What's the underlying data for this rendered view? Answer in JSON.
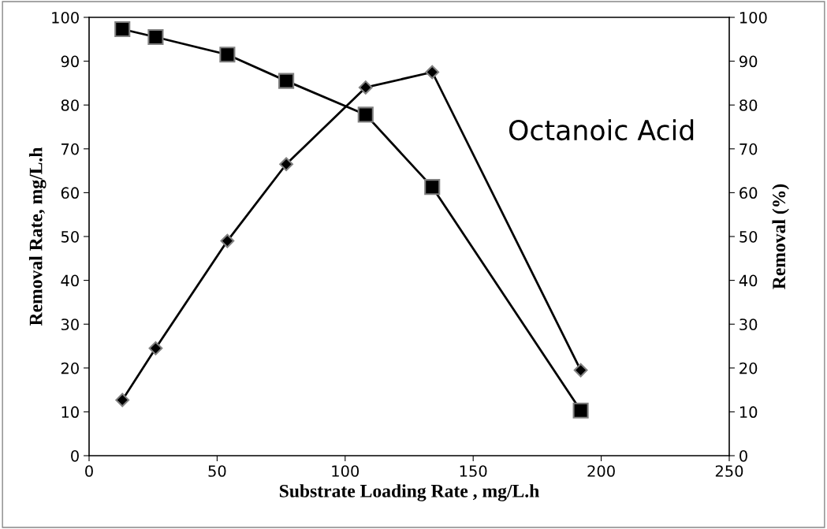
{
  "chart_data": {
    "type": "line",
    "xlabel": "Substrate Loading Rate , mg/L.h",
    "ylabel": "Removal Rate, mg/L.h",
    "y2label": "Removal (%)",
    "annotations": [
      "Octanoic Acid"
    ],
    "xlim": [
      0,
      250
    ],
    "xticks": [
      0,
      50,
      100,
      150,
      200,
      250
    ],
    "ylim": [
      0,
      100
    ],
    "yticks": [
      0,
      10,
      20,
      30,
      40,
      50,
      60,
      70,
      80,
      90,
      100
    ],
    "y2lim": [
      0,
      100
    ],
    "y2ticks": [
      0,
      10,
      20,
      30,
      40,
      50,
      60,
      70,
      80,
      90,
      100
    ],
    "grid": false,
    "series": [
      {
        "color": "#000000",
        "marker": "diamond",
        "x": [
          13,
          26,
          54,
          77,
          108,
          134,
          192
        ],
        "values": [
          12.7,
          24.5,
          49,
          66.5,
          84,
          87.5,
          19.5
        ]
      },
      {
        "color": "#000000",
        "marker": "square",
        "x": [
          13,
          26,
          54,
          77,
          108,
          134,
          192
        ],
        "values": [
          97.3,
          95.5,
          91.5,
          85.5,
          77.8,
          61.3,
          10.3
        ]
      }
    ]
  }
}
